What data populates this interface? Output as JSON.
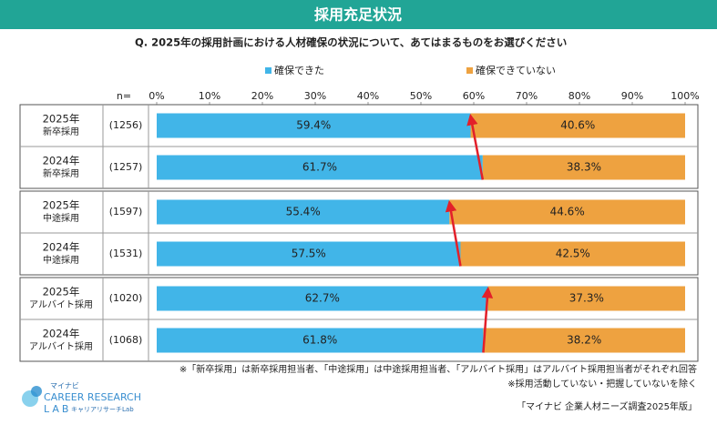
{
  "chart_data": {
    "type": "stacked-bar-h",
    "title": "採用充足状況",
    "subtitle": "Q.  2025年の採用計画における人材確保の状況について、あてはまるものをお選びください",
    "n_header": "n=",
    "categories": [
      [
        "2025年",
        "新卒採用"
      ],
      [
        "2024年",
        "新卒採用"
      ],
      [
        "2025年",
        "中途採用"
      ],
      [
        "2024年",
        "中途採用"
      ],
      [
        "2025年",
        "アルバイト採用"
      ],
      [
        "2024年",
        "アルバイト採用"
      ]
    ],
    "n": [
      {
        "value": 1256,
        "label": "(1256)"
      },
      {
        "value": 1257,
        "label": "(1257)"
      },
      {
        "value": 1597,
        "label": "(1597)"
      },
      {
        "value": 1531,
        "label": "(1531)"
      },
      {
        "value": 1020,
        "label": "(1020)"
      },
      {
        "value": 1068,
        "label": "(1068)"
      }
    ],
    "series": [
      {
        "name": "確保できた",
        "color": "#41b5e8",
        "values": [
          59.4,
          61.7,
          55.4,
          57.5,
          62.7,
          61.8
        ],
        "value_labels": [
          "59.4%",
          "61.7%",
          "55.4%",
          "57.5%",
          "62.7%",
          "61.8%"
        ]
      },
      {
        "name": "確保できていない",
        "color": "#eea240",
        "values": [
          40.6,
          38.3,
          44.6,
          42.5,
          37.3,
          38.2
        ],
        "value_labels": [
          "40.6%",
          "38.3%",
          "44.6%",
          "42.5%",
          "37.3%",
          "38.2%"
        ]
      }
    ],
    "xlim": [
      0,
      100
    ],
    "xticks": [
      {
        "value": 0,
        "label": "0%"
      },
      {
        "value": 10,
        "label": "10%"
      },
      {
        "value": 20,
        "label": "20%"
      },
      {
        "value": 30,
        "label": "30%"
      },
      {
        "value": 40,
        "label": "40%"
      },
      {
        "value": 50,
        "label": "50%"
      },
      {
        "value": 60,
        "label": "60%"
      },
      {
        "value": 70,
        "label": "70%"
      },
      {
        "value": 80,
        "label": "80%"
      },
      {
        "value": 90,
        "label": "90%"
      },
      {
        "value": 100,
        "label": "100%"
      }
    ],
    "legend": "top"
  },
  "notes": [
    "※「新卒採用」は新卒採用担当者、「中途採用」は中途採用担当者、「アルバイト採用」はアルバイト採用担当者がそれぞれ回答",
    "※採用活動していない・把握していないを除く"
  ],
  "source": "「マイナビ 企業人材ニーズ調査2025年版」",
  "logo": {
    "brand": "マイナビ",
    "name": "CAREER RESEARCH",
    "lab": "LAB",
    "sub": "キャリアリサーチLab"
  }
}
